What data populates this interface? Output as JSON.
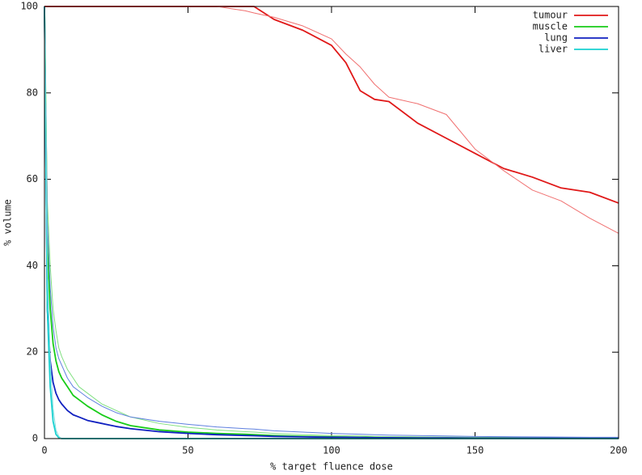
{
  "chart_data": {
    "type": "line",
    "xlabel": "% target fluence dose",
    "ylabel": "% volume",
    "x": [
      0,
      1,
      2,
      3,
      4,
      5,
      6,
      8,
      10,
      12,
      15,
      20,
      25,
      30,
      40,
      50,
      60,
      70,
      73,
      80,
      90,
      100,
      105,
      110,
      115,
      120,
      130,
      140,
      150,
      160,
      170,
      180,
      190,
      200
    ],
    "xlim": [
      0,
      200
    ],
    "xticks": [
      0,
      50,
      100,
      150,
      200
    ],
    "ylim": [
      0,
      100
    ],
    "yticks": [
      0,
      20,
      40,
      60,
      80,
      100
    ],
    "legend": "top-right",
    "series": [
      {
        "name": "tumour",
        "color": "#e01818",
        "width": 1.8,
        "values": [
          100,
          100,
          100,
          100,
          100,
          100,
          100,
          100,
          100,
          100,
          100,
          100,
          100,
          100,
          100,
          100,
          100,
          100,
          100,
          97,
          94.5,
          91,
          87,
          80.5,
          78.5,
          78,
          73,
          69.5,
          66,
          62.5,
          60.5,
          58,
          57,
          54.5
        ]
      },
      {
        "color": "#f07070",
        "width": 1,
        "values": [
          100,
          100,
          100,
          100,
          100,
          100,
          100,
          100,
          100,
          100,
          100,
          100,
          100,
          100,
          100,
          100,
          100,
          99,
          98.5,
          97.5,
          95.5,
          92.5,
          89,
          86,
          82,
          79,
          77.5,
          75,
          67,
          62,
          57.5,
          55,
          51,
          47.5
        ]
      },
      {
        "name": "muscle",
        "color": "#18cc18",
        "width": 1.8,
        "values": [
          100,
          45,
          30,
          22,
          18,
          15.5,
          14,
          12,
          10,
          9,
          7.5,
          5.5,
          4,
          3,
          2,
          1.5,
          1.2,
          1,
          0.9,
          0.7,
          0.5,
          0.4,
          0.35,
          0.3,
          0.3,
          0.25,
          0.2,
          0.2,
          0.15,
          0.15,
          0.1,
          0.1,
          0.1,
          0.1
        ]
      },
      {
        "color": "#80e080",
        "width": 1,
        "values": [
          100,
          55,
          40,
          30,
          25,
          21,
          19,
          16,
          14,
          12,
          10.5,
          8,
          6.5,
          5,
          3.5,
          2.6,
          2,
          1.6,
          1.5,
          1.2,
          0.9,
          0.7,
          0.65,
          0.6,
          0.5,
          0.45,
          0.4,
          0.35,
          0.3,
          0.3,
          0.25,
          0.2,
          0.2,
          0.2
        ]
      },
      {
        "name": "lung",
        "color": "#1020c0",
        "width": 1.8,
        "values": [
          100,
          30,
          18,
          13,
          10.5,
          9,
          8,
          6.5,
          5.5,
          5,
          4.2,
          3.5,
          2.8,
          2.3,
          1.6,
          1.2,
          0.9,
          0.7,
          0.65,
          0.5,
          0.4,
          0.3,
          0.3,
          0.25,
          0.2,
          0.2,
          0.15,
          0.15,
          0.1,
          0.1,
          0.1,
          0.1,
          0.1,
          0.1
        ]
      },
      {
        "color": "#6080e0",
        "width": 1,
        "values": [
          100,
          50,
          35,
          26,
          21,
          18.5,
          17,
          14,
          12,
          11,
          9.5,
          7.5,
          6,
          5,
          4,
          3.3,
          2.7,
          2.3,
          2.2,
          1.8,
          1.5,
          1.2,
          1.1,
          1,
          0.9,
          0.8,
          0.7,
          0.6,
          0.5,
          0.45,
          0.4,
          0.35,
          0.3,
          0.3
        ]
      },
      {
        "name": "liver",
        "color": "#18d0d0",
        "width": 1.8,
        "values": [
          100,
          30,
          12,
          4,
          1,
          0.2,
          0,
          0,
          0,
          0,
          0,
          0,
          0,
          0,
          0,
          0,
          0,
          0,
          0,
          0,
          0,
          0,
          0,
          0,
          0,
          0,
          0,
          0,
          0,
          0,
          0,
          0,
          0,
          0
        ]
      },
      {
        "color": "#80e0e0",
        "width": 1,
        "values": [
          100,
          40,
          18,
          7,
          2,
          0.5,
          0,
          0,
          0,
          0,
          0,
          0,
          0,
          0,
          0,
          0,
          0,
          0,
          0,
          0,
          0,
          0,
          0,
          0,
          0,
          0,
          0,
          0,
          0,
          0,
          0,
          0,
          0,
          0
        ]
      }
    ]
  }
}
